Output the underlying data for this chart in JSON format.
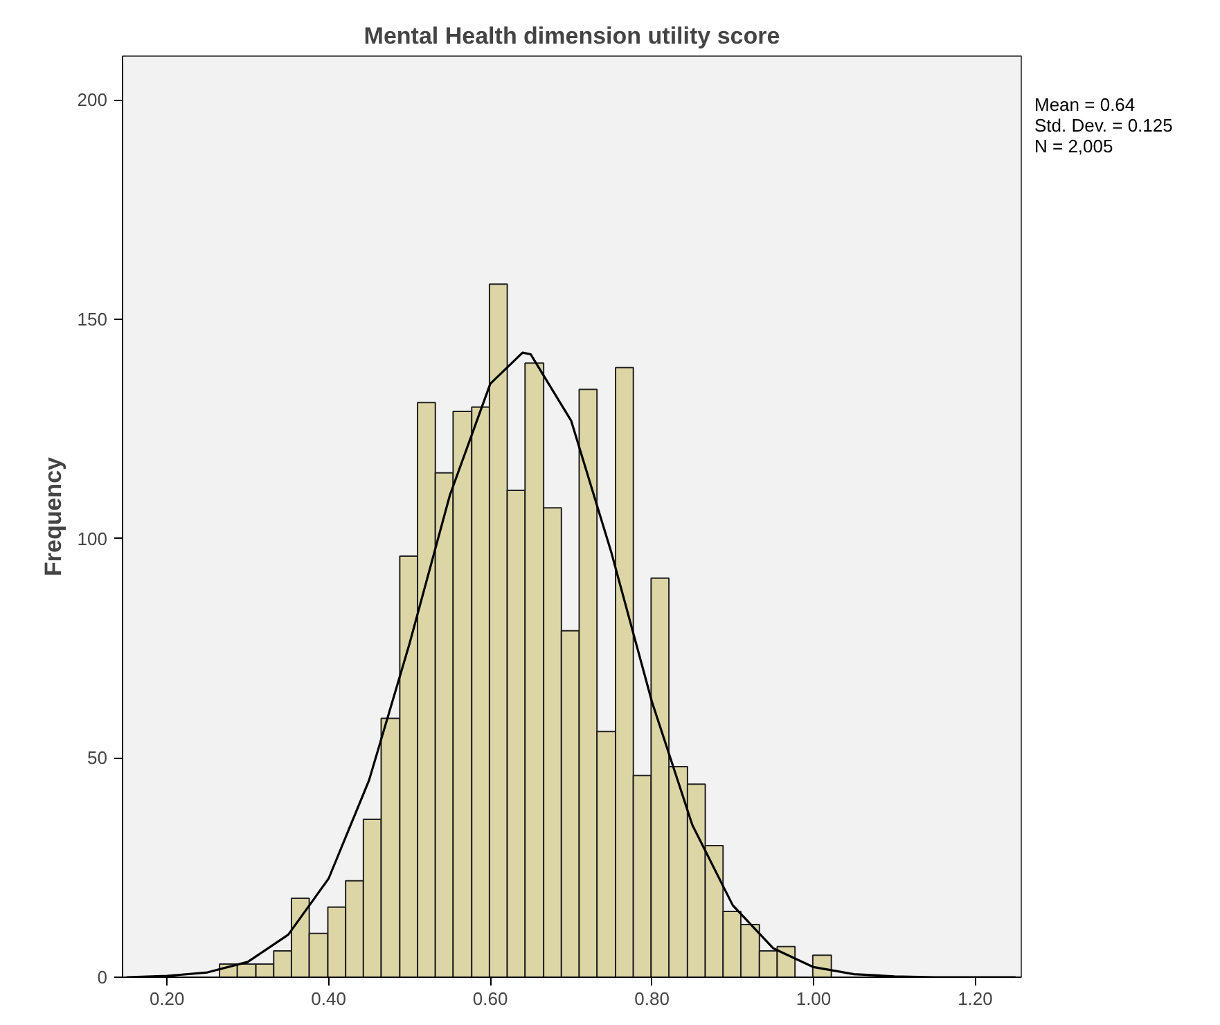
{
  "chart_data": {
    "type": "histogram",
    "title": "Mental Health dimension utility score",
    "ylabel": "Frequency",
    "bins": [
      0.265,
      0.287,
      0.31,
      0.332,
      0.354,
      0.376,
      0.399,
      0.421,
      0.443,
      0.465,
      0.488,
      0.51,
      0.532,
      0.554,
      0.577,
      0.599,
      0.621,
      0.643,
      0.666,
      0.688,
      0.71,
      0.732,
      0.755,
      0.777,
      0.799,
      0.821,
      0.844,
      0.866,
      0.888,
      0.91,
      0.933,
      0.955,
      0.977,
      0.999,
      1.022
    ],
    "values": [
      3,
      3,
      3,
      6,
      18,
      10,
      16,
      22,
      36,
      59,
      96,
      131,
      115,
      129,
      130,
      158,
      111,
      140,
      107,
      79,
      134,
      56,
      139,
      46,
      91,
      48,
      44,
      30,
      15,
      12,
      6,
      7,
      0,
      5
    ],
    "color": "#dcd6a6",
    "series": [
      {
        "type": "line",
        "color": "#000000",
        "x": [
          0.15,
          0.2,
          0.25,
          0.3,
          0.35,
          0.4,
          0.45,
          0.5,
          0.55,
          0.6,
          0.64,
          0.65,
          0.7,
          0.75,
          0.8,
          0.85,
          0.9,
          0.95,
          1.0,
          1.05,
          1.1,
          1.15,
          1.2,
          1.25
        ],
        "values": [
          0,
          0.3,
          1.1,
          3.5,
          9.7,
          22.5,
          44.9,
          76,
          109.9,
          135.3,
          142.4,
          142,
          126.9,
          96.7,
          62.8,
          34.7,
          16.4,
          6.6,
          2.3,
          0.7,
          0.2,
          0,
          0,
          0
        ]
      }
    ],
    "xlim": [
      0.145,
      1.257
    ],
    "ylim": [
      0,
      210
    ],
    "xticks": [
      {
        "value": 0.2,
        "label": "0.20"
      },
      {
        "value": 0.4,
        "label": "0.40"
      },
      {
        "value": 0.6,
        "label": "0.60"
      },
      {
        "value": 0.8,
        "label": "0.80"
      },
      {
        "value": 1.0,
        "label": "1.00"
      },
      {
        "value": 1.2,
        "label": "1.20"
      }
    ],
    "yticks": [
      0,
      50,
      100,
      150,
      200
    ],
    "grid": false,
    "annotations": [
      "Mean = 0.64",
      "Std. Dev. = 0.125",
      "N = 2,005"
    ]
  }
}
